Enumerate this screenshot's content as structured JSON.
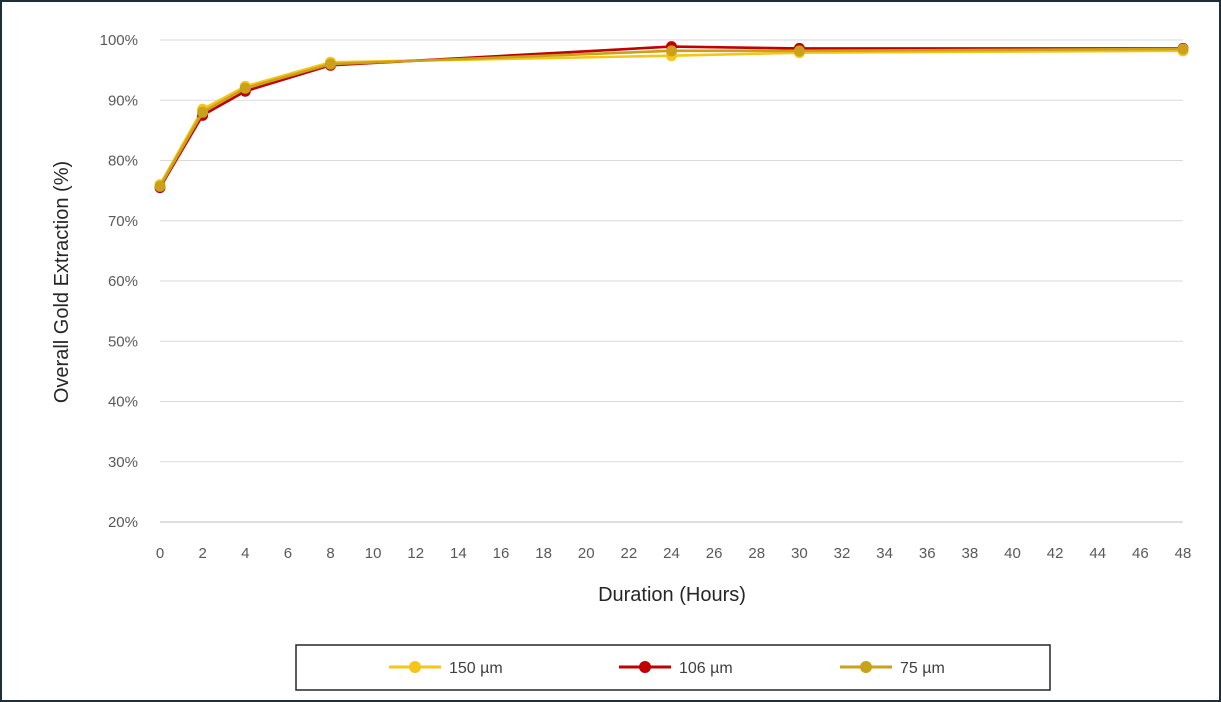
{
  "chart_data": {
    "type": "line",
    "xlabel": "Duration (Hours)",
    "ylabel": "Overall Gold Extraction (%)",
    "xlim": [
      0,
      48
    ],
    "ylim": [
      20,
      100
    ],
    "x_ticks": [
      0,
      2,
      4,
      6,
      8,
      10,
      12,
      14,
      16,
      18,
      20,
      22,
      24,
      26,
      28,
      30,
      32,
      34,
      36,
      38,
      40,
      42,
      44,
      46,
      48
    ],
    "y_ticks": [
      20,
      30,
      40,
      50,
      60,
      70,
      80,
      90,
      100
    ],
    "y_tick_suffix": "%",
    "grid": "horizontal",
    "legend_position": "bottom",
    "series": [
      {
        "name": "150 µm",
        "color": "#f5c518",
        "x": [
          0,
          2,
          4,
          8,
          24,
          30,
          48
        ],
        "y": [
          76.0,
          88.5,
          92.3,
          96.3,
          97.4,
          97.9,
          98.2
        ]
      },
      {
        "name": "106 µm",
        "color": "#c00000",
        "x": [
          0,
          2,
          4,
          8,
          24,
          30,
          48
        ],
        "y": [
          75.5,
          87.5,
          91.5,
          95.8,
          98.9,
          98.6,
          98.6
        ]
      },
      {
        "name": "75 µm",
        "color": "#c9a21a",
        "x": [
          0,
          2,
          4,
          8,
          24,
          30,
          48
        ],
        "y": [
          75.7,
          88.0,
          92.0,
          96.0,
          98.2,
          98.2,
          98.5
        ]
      }
    ]
  }
}
